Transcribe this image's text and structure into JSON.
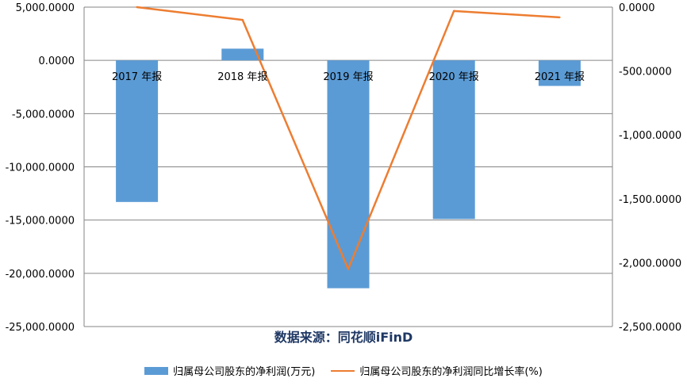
{
  "chart_data": {
    "type": "bar",
    "categories": [
      "2017 年报",
      "2018 年报",
      "2019 年报",
      "2020 年报",
      "2021 年报"
    ],
    "series": [
      {
        "name": "归属母公司股东的净利润(万元)",
        "type": "bar",
        "axis": "left",
        "values": [
          -13300,
          1100,
          -21400,
          -14900,
          -2400
        ],
        "color": "#5b9bd5"
      },
      {
        "name": "归属母公司股东的净利润同比增长率(%)",
        "type": "line",
        "axis": "right",
        "values": [
          0,
          -100,
          -2050,
          -30,
          -80
        ],
        "color": "#ed7d31"
      }
    ],
    "y_left": {
      "min": -25000,
      "max": 5000,
      "step": 5000,
      "ticks": [
        "5,000.0000",
        "0.0000",
        "-5,000.0000",
        "-10,000.0000",
        "-15,000.0000",
        "-20,000.0000",
        "-25,000.0000"
      ]
    },
    "y_right": {
      "min": -2500,
      "max": 0,
      "step": 500,
      "ticks": [
        "0.0000",
        "-500.0000",
        "-1,000.0000",
        "-1,500.0000",
        "-2,000.0000",
        "-2,500.0000"
      ]
    },
    "grid": true,
    "legend_position": "bottom"
  },
  "source_text": "数据来源：同花顺iFinD"
}
